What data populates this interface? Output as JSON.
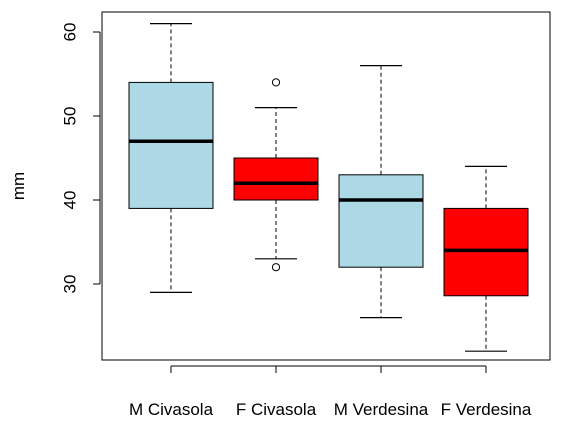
{
  "chart_data": {
    "type": "boxplot",
    "title": "",
    "xlabel": "",
    "ylabel": "mm",
    "ylim": [
      20,
      63
    ],
    "yticks": [
      30,
      40,
      50,
      60
    ],
    "grid": false,
    "categories": [
      "M Civasola",
      "F Civasola",
      "M Verdesina",
      "F Verdesina"
    ],
    "boxes": [
      {
        "category": "M Civasola",
        "color": "#add8e6",
        "whisker_low": 29,
        "q1": 39,
        "median": 47,
        "q3": 54,
        "whisker_high": 61,
        "outliers": []
      },
      {
        "category": "F Civasola",
        "color": "#ff0000",
        "whisker_low": 33,
        "q1": 40,
        "median": 42,
        "q3": 45,
        "whisker_high": 51,
        "outliers": [
          32,
          54
        ]
      },
      {
        "category": "M Verdesina",
        "color": "#add8e6",
        "whisker_low": 26,
        "q1": 32,
        "median": 40,
        "q3": 43,
        "whisker_high": 56,
        "outliers": []
      },
      {
        "category": "F Verdesina",
        "color": "#ff0000",
        "whisker_low": 22,
        "q1": 28.6,
        "median": 34,
        "q3": 39,
        "whisker_high": 44,
        "outliers": []
      }
    ]
  }
}
